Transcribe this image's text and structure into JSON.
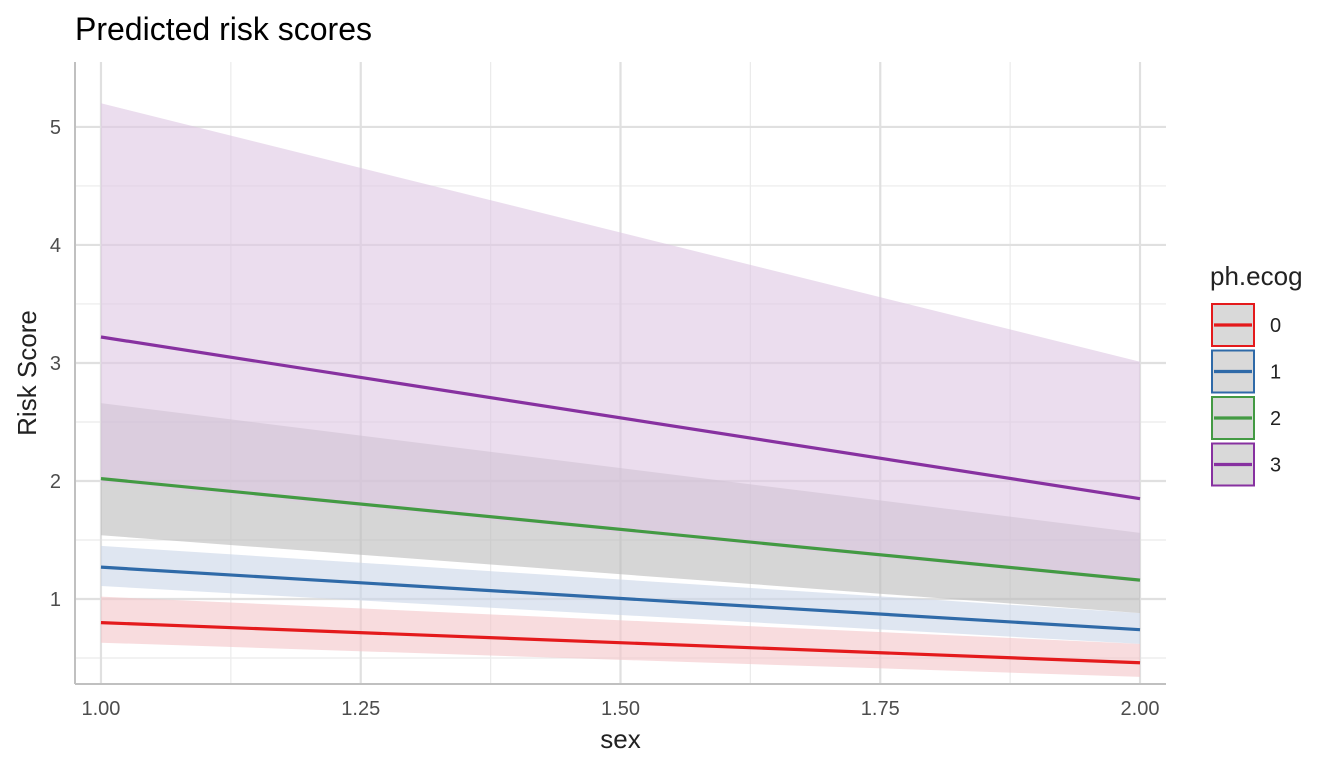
{
  "chart_data": {
    "type": "line",
    "title": "Predicted risk scores",
    "xlabel": "sex",
    "ylabel": "Risk Score",
    "xlim": [
      0.975,
      2.025
    ],
    "ylim": [
      0.28,
      5.55
    ],
    "x_ticks": [
      1.0,
      1.25,
      1.5,
      1.75,
      2.0
    ],
    "x_tick_labels": [
      "1.00",
      "1.25",
      "1.50",
      "1.75",
      "2.00"
    ],
    "x_minor_ticks": [
      1.125,
      1.375,
      1.625,
      1.875
    ],
    "y_ticks": [
      1,
      2,
      3,
      4,
      5
    ],
    "y_tick_labels": [
      "1",
      "2",
      "3",
      "4",
      "5"
    ],
    "y_minor_ticks": [
      0.5,
      1.5,
      2.5,
      3.5,
      4.5
    ],
    "grid": true,
    "legend_title": "ph.ecog",
    "legend_position": "right",
    "x": [
      1.0,
      2.0
    ],
    "series": [
      {
        "name": "0",
        "color": "#e41a1c",
        "fill": "#f4c4c8",
        "values": [
          0.8,
          0.46
        ],
        "lower": [
          0.63,
          0.34
        ],
        "upper": [
          1.02,
          0.62
        ]
      },
      {
        "name": "1",
        "color": "#2f6aa8",
        "fill": "#c9d6e8",
        "values": [
          1.27,
          0.74
        ],
        "lower": [
          1.11,
          0.62
        ],
        "upper": [
          1.45,
          0.88
        ]
      },
      {
        "name": "2",
        "color": "#439a43",
        "fill": "#cfe6cf",
        "values": [
          2.02,
          1.16
        ],
        "lower": [
          1.54,
          0.88
        ],
        "upper": [
          2.66,
          1.56
        ]
      },
      {
        "name": "3",
        "color": "#8731a0",
        "fill": "#dec6e2",
        "values": [
          3.22,
          1.85
        ],
        "lower": [
          1.99,
          1.14
        ],
        "upper": [
          5.2,
          3.01
        ]
      }
    ]
  }
}
